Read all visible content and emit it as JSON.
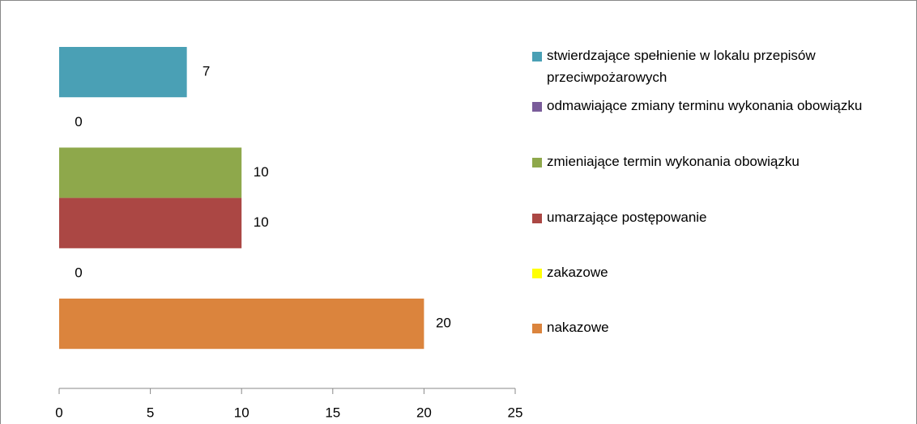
{
  "chart_data": {
    "type": "bar",
    "orientation": "horizontal",
    "series": [
      {
        "name": "stwierdzające spełnienie w lokalu przepisów przeciwpożarowych",
        "color": "#4aa0b5",
        "values": [
          7
        ]
      },
      {
        "name": "odmawiające zmiany terminu wykonania obowiązku",
        "color": "#7a5c9a",
        "values": [
          0
        ]
      },
      {
        "name": "zmieniające termin wykonania obowiązku",
        "color": "#8ea84b",
        "values": [
          10
        ]
      },
      {
        "name": "umarzające postępowanie",
        "color": "#ab4744",
        "values": [
          10
        ]
      },
      {
        "name": "zakazowe",
        "color": "#ffff00",
        "values": [
          0
        ]
      },
      {
        "name": "nakazowe",
        "color": "#db843d",
        "values": [
          20
        ]
      }
    ],
    "xlim": [
      0,
      25
    ],
    "xticks": [
      0,
      5,
      10,
      15,
      20,
      25
    ],
    "legend": "right",
    "grid": false
  }
}
